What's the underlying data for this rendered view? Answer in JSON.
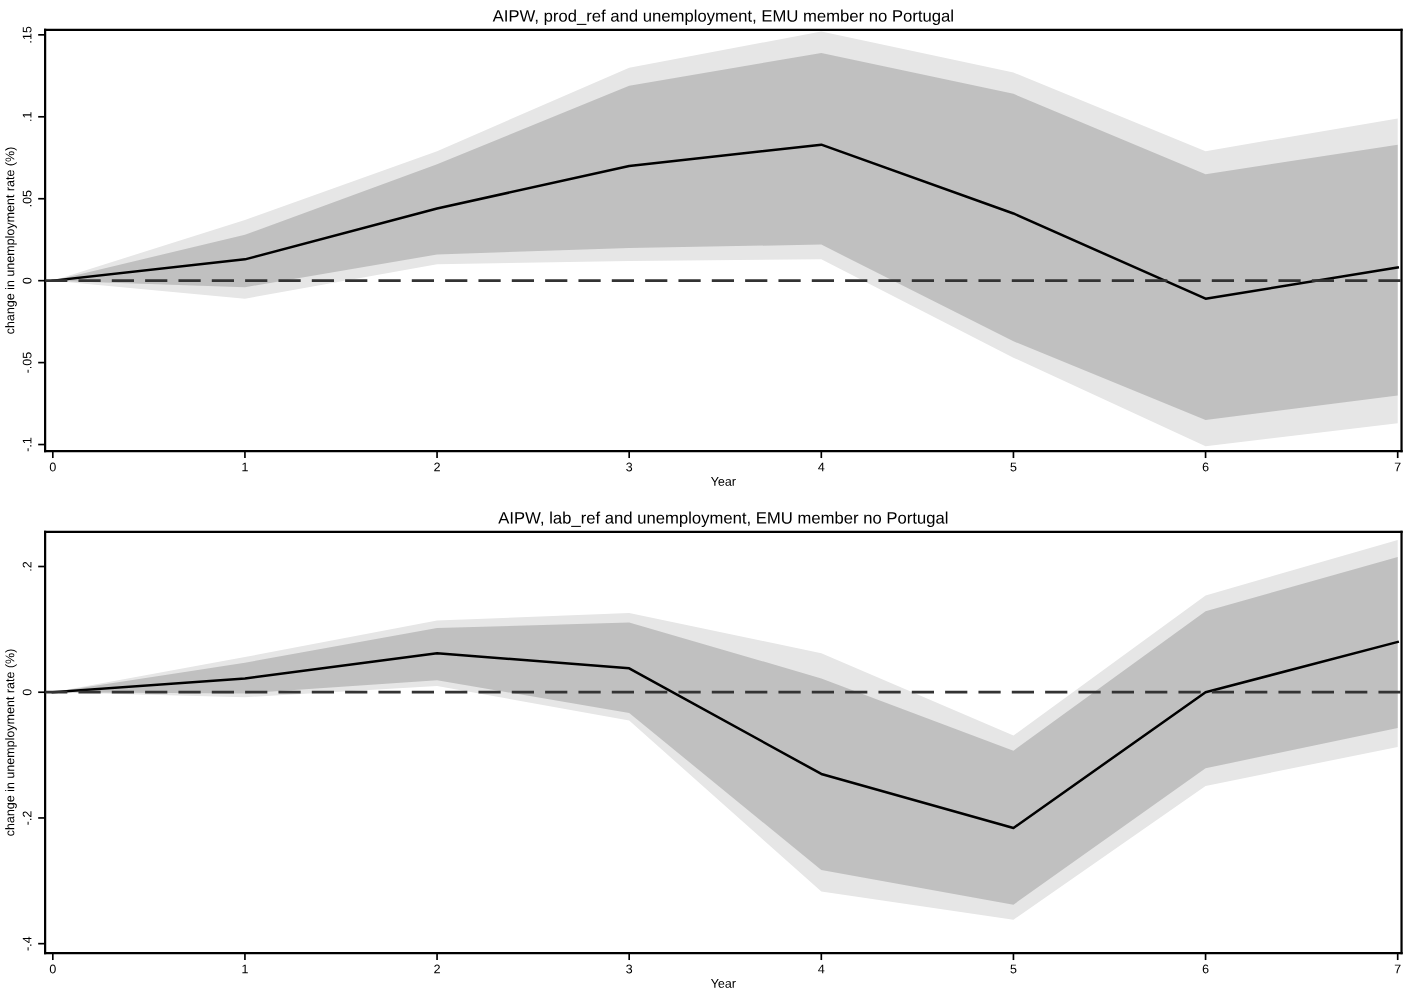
{
  "chart_data": [
    {
      "type": "line",
      "title": "AIPW, prod_ref and unemployment, EMU member no Portugal",
      "xlabel": "Year",
      "ylabel": "change in unemployment rate (%)",
      "x": [
        0,
        1,
        2,
        3,
        4,
        5,
        6,
        7
      ],
      "xlim": [
        -0.04,
        7.02
      ],
      "xticks": [
        0,
        1,
        2,
        3,
        4,
        5,
        6,
        7
      ],
      "ylim": [
        -0.104,
        0.153
      ],
      "yticks": [
        {
          "value": 0.15,
          "label": ".15"
        },
        {
          "value": 0.1,
          "label": ".1"
        },
        {
          "value": 0.05,
          "label": ".05"
        },
        0,
        {
          "value": -0.05,
          "label": "-.05"
        },
        {
          "value": -0.1,
          "label": "-.1"
        }
      ],
      "series": [
        {
          "color": "#e6e6e6",
          "values": [
            null,
            null,
            null,
            null,
            null,
            null,
            null,
            null
          ],
          "lower": [
            0,
            -0.011,
            0.01,
            0.012,
            0.013,
            -0.047,
            -0.101,
            -0.087
          ],
          "upper": [
            0,
            0.037,
            0.079,
            0.13,
            0.152,
            0.127,
            0.079,
            0.099
          ]
        },
        {
          "color": "#c0c0c0",
          "values": [
            null,
            null,
            null,
            null,
            null,
            null,
            null,
            null
          ],
          "lower": [
            0,
            -0.004,
            0.016,
            0.02,
            0.022,
            -0.037,
            -0.085,
            -0.07
          ],
          "upper": [
            0,
            0.028,
            0.071,
            0.119,
            0.139,
            0.114,
            0.065,
            0.083
          ]
        },
        {
          "color": "#000000",
          "values": [
            0,
            0.013,
            0.044,
            0.07,
            0.083,
            0.041,
            -0.011,
            0.008
          ]
        }
      ],
      "ref_lines": [
        {
          "axis": "y",
          "value": 0,
          "color": "#333333",
          "line_style": "dashed"
        }
      ],
      "grid": false,
      "legend": false,
      "marker": "none",
      "line_style": "solid"
    },
    {
      "type": "line",
      "title": "AIPW, lab_ref and unemployment, EMU member no Portugal",
      "xlabel": "Year",
      "ylabel": "change in unemployment rate (%)",
      "x": [
        0,
        1,
        2,
        3,
        4,
        5,
        6,
        7
      ],
      "xlim": [
        -0.04,
        7.02
      ],
      "xticks": [
        0,
        1,
        2,
        3,
        4,
        5,
        6,
        7
      ],
      "ylim": [
        -0.415,
        0.255
      ],
      "yticks": [
        {
          "value": 0.2,
          "label": ".2"
        },
        0,
        {
          "value": -0.2,
          "label": "-.2"
        },
        {
          "value": -0.4,
          "label": "-.4"
        }
      ],
      "series": [
        {
          "color": "#e6e6e6",
          "values": [
            null,
            null,
            null,
            null,
            null,
            null,
            null,
            null
          ],
          "lower": [
            0,
            -0.008,
            0.01,
            -0.045,
            -0.317,
            -0.362,
            -0.149,
            -0.087
          ],
          "upper": [
            0,
            0.056,
            0.114,
            0.126,
            0.062,
            -0.069,
            0.154,
            0.242
          ]
        },
        {
          "color": "#c0c0c0",
          "values": [
            null,
            null,
            null,
            null,
            null,
            null,
            null,
            null
          ],
          "lower": [
            0,
            -0.002,
            0.019,
            -0.033,
            -0.283,
            -0.338,
            -0.121,
            -0.057
          ],
          "upper": [
            0,
            0.047,
            0.102,
            0.111,
            0.022,
            -0.093,
            0.129,
            0.215
          ]
        },
        {
          "color": "#000000",
          "values": [
            0,
            0.022,
            0.062,
            0.038,
            -0.13,
            -0.216,
            0.0,
            0.08
          ]
        }
      ],
      "ref_lines": [
        {
          "axis": "y",
          "value": 0,
          "color": "#333333",
          "line_style": "dashed"
        }
      ],
      "grid": false,
      "legend": false,
      "marker": "none",
      "line_style": "solid"
    }
  ]
}
